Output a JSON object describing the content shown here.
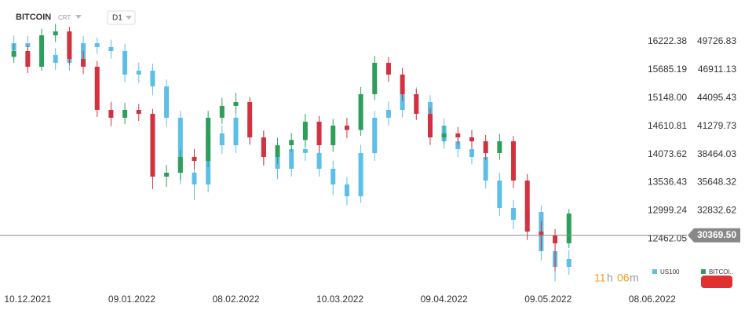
{
  "header": {
    "symbol": "BITCOIN",
    "mode": "CRT",
    "interval": "D1"
  },
  "timer": {
    "hours": "11",
    "h": "h",
    "minutes": "06",
    "m": "m"
  },
  "chart_data": {
    "type": "candlestick",
    "x": [
      "06.12.2021",
      "10.12.2021",
      "14.12.2021",
      "18.12.2021",
      "22.12.2021",
      "26.12.2021",
      "30.12.2021",
      "03.01.2022",
      "07.01.2022",
      "11.01.2022",
      "15.01.2022",
      "19.01.2022",
      "23.01.2022",
      "27.01.2022",
      "31.01.2022",
      "04.02.2022",
      "08.02.2022",
      "12.02.2022",
      "16.02.2022",
      "20.02.2022",
      "24.02.2022",
      "28.02.2022",
      "04.03.2022",
      "08.03.2022",
      "12.03.2022",
      "16.03.2022",
      "20.03.2022",
      "24.03.2022",
      "28.03.2022",
      "01.04.2022",
      "05.04.2022",
      "09.04.2022",
      "13.04.2022",
      "17.04.2022",
      "21.04.2022",
      "25.04.2022",
      "29.04.2022",
      "03.05.2022",
      "07.05.2022",
      "11.05.2022",
      "15.05.2022"
    ],
    "xlim": [
      "02.12.2021",
      "18.06.2022"
    ],
    "xticks": [
      "10.12.2021",
      "09.01.2022",
      "08.02.2022",
      "10.03.2022",
      "09.04.2022",
      "09.05.2022",
      "08.06.2022"
    ],
    "ylim": [
      11478.9,
      17015.5
    ],
    "yticks": [
      16222.38,
      15685.19,
      {
        "value": 15148,
        "label": "15148.00"
      },
      14610.81,
      14073.62,
      13536.43,
      12999.24,
      12462.05
    ],
    "y2lim": [
      24864,
      53884
    ],
    "y2ticks": [
      49726.83,
      46911.13,
      44095.43,
      41279.73,
      38464.03,
      35648.32,
      32832.62
    ],
    "current_price": {
      "value": 30369.5,
      "label": "30369.50"
    },
    "series": [
      {
        "name": "US100",
        "color": "#5cbfe8",
        "open": [
          16050,
          16192,
          16118,
          15968,
          15818,
          15893,
          16192,
          16118,
          16043,
          15594,
          15669,
          15369,
          14771,
          13723,
          13499,
          14471,
          14247,
          14771,
          14397,
          14023,
          13798,
          14172,
          14100,
          13798,
          13499,
          13274,
          14097,
          14771,
          14920,
          15220,
          15070,
          14621,
          14322,
          14172,
          14023,
          13574,
          13050,
          12826,
          12975,
          12227,
          11928
        ],
        "high": [
          16340,
          16330,
          16260,
          16100,
          16030,
          16330,
          16300,
          16260,
          16180,
          15820,
          15800,
          15500,
          14900,
          13900,
          14600,
          14620,
          14900,
          14920,
          14530,
          14180,
          14320,
          14330,
          14250,
          13950,
          13640,
          14250,
          14900,
          15080,
          15380,
          15350,
          15200,
          14760,
          14460,
          14310,
          14160,
          13720,
          13200,
          13130,
          13100,
          12370,
          12250
        ],
        "low": [
          15900,
          15980,
          15820,
          15680,
          15670,
          15760,
          15990,
          15900,
          15450,
          15440,
          15200,
          14600,
          13500,
          13200,
          13350,
          14080,
          14100,
          14250,
          13850,
          13600,
          13650,
          13950,
          13650,
          13300,
          13100,
          13150,
          13950,
          14620,
          14780,
          14920,
          14480,
          14180,
          14020,
          13880,
          13420,
          12900,
          12650,
          12680,
          12050,
          11650,
          11780
        ],
        "close": [
          16192,
          16118,
          15968,
          15818,
          15893,
          16192,
          16118,
          16043,
          15594,
          15669,
          15369,
          14771,
          13723,
          13499,
          14471,
          14247,
          14771,
          14397,
          14023,
          13798,
          14172,
          14100,
          13798,
          13499,
          13274,
          14097,
          14771,
          14920,
          15220,
          15070,
          14621,
          14322,
          14172,
          14023,
          13574,
          13050,
          12826,
          12975,
          12227,
          11928,
          12077
        ]
      },
      {
        "name": "BITCOI..",
        "axis": "y2",
        "color": "#2e9e5b",
        "color_down": "#d3313f",
        "open": [
          48200,
          48786,
          47217,
          50354,
          50746,
          48001,
          47217,
          42904,
          42119,
          42904,
          42511,
          36237,
          36629,
          38198,
          37806,
          42119,
          43296,
          43688,
          40158,
          38198,
          39374,
          39900,
          41727,
          39374,
          41335,
          40900,
          44472,
          47609,
          46433,
          44472,
          42511,
          40158,
          40550,
          40158,
          39766,
          38590,
          39766,
          35845,
          30747,
          30355,
          29571
        ],
        "high": [
          49500,
          49400,
          51000,
          51500,
          51200,
          48800,
          47800,
          43700,
          43600,
          43500,
          43000,
          37400,
          38900,
          39000,
          42800,
          44100,
          44600,
          44200,
          40800,
          40100,
          40600,
          42500,
          42300,
          42000,
          42100,
          45200,
          48300,
          48200,
          47100,
          45000,
          43100,
          41300,
          41200,
          40900,
          40400,
          40500,
          40300,
          36500,
          31800,
          31000,
          33000
        ],
        "low": [
          47600,
          46600,
          46800,
          49700,
          47400,
          46500,
          42200,
          41300,
          41500,
          41800,
          35000,
          35200,
          35900,
          37000,
          37200,
          41500,
          42600,
          39500,
          37400,
          37500,
          38700,
          39200,
          38600,
          38700,
          40100,
          40300,
          43900,
          45700,
          43800,
          41900,
          39400,
          39500,
          39400,
          39000,
          37900,
          37900,
          35100,
          29900,
          28900,
          26800,
          29100
        ],
        "close": [
          48786,
          47217,
          50354,
          50746,
          48001,
          47217,
          42904,
          42119,
          42904,
          42511,
          36237,
          36629,
          38198,
          37806,
          42119,
          43296,
          43688,
          40158,
          38198,
          39374,
          39900,
          41727,
          39374,
          41335,
          40900,
          44472,
          47609,
          46433,
          44472,
          42511,
          40158,
          40550,
          40158,
          39766,
          38590,
          39766,
          35845,
          30747,
          30355,
          29571,
          32551
        ]
      }
    ]
  }
}
